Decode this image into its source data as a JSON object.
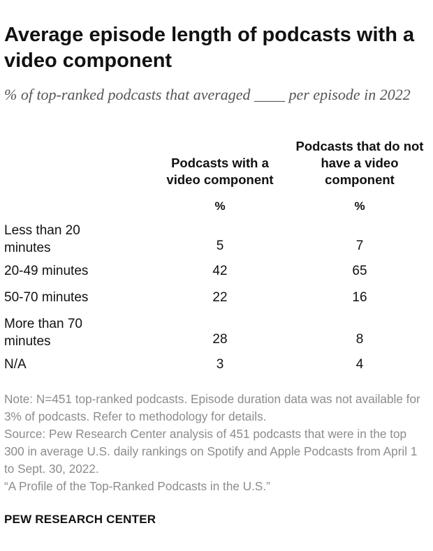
{
  "title": "Average episode length of podcasts with a video component",
  "subtitle": "% of top-ranked podcasts that averaged ____ per episode in 2022",
  "chart_data": {
    "type": "table",
    "columns": [
      {
        "header": "Podcasts with a video component",
        "unit": "%"
      },
      {
        "header": "Podcasts that do not have a video component",
        "unit": "%"
      }
    ],
    "rows": [
      {
        "label": "Less than 20 minutes",
        "values": [
          5,
          7
        ]
      },
      {
        "label": "20-49 minutes",
        "values": [
          42,
          65
        ]
      },
      {
        "label": "50-70 minutes",
        "values": [
          22,
          16
        ]
      },
      {
        "label": "More than 70 minutes",
        "values": [
          28,
          8
        ]
      },
      {
        "label": "N/A",
        "values": [
          3,
          4
        ]
      }
    ]
  },
  "notes": {
    "note": "Note: N=451 top-ranked podcasts. Episode duration data was not available for 3% of podcasts. Refer to methodology for details.",
    "source": "Source: Pew Research Center analysis of 451 podcasts that were in the top 300 in average U.S. daily rankings on Spotify and Apple Podcasts from April 1 to Sept. 30, 2022.",
    "report": "“A Profile of the Top-Ranked Podcasts in the U.S.”"
  },
  "brand": "PEW RESEARCH CENTER"
}
